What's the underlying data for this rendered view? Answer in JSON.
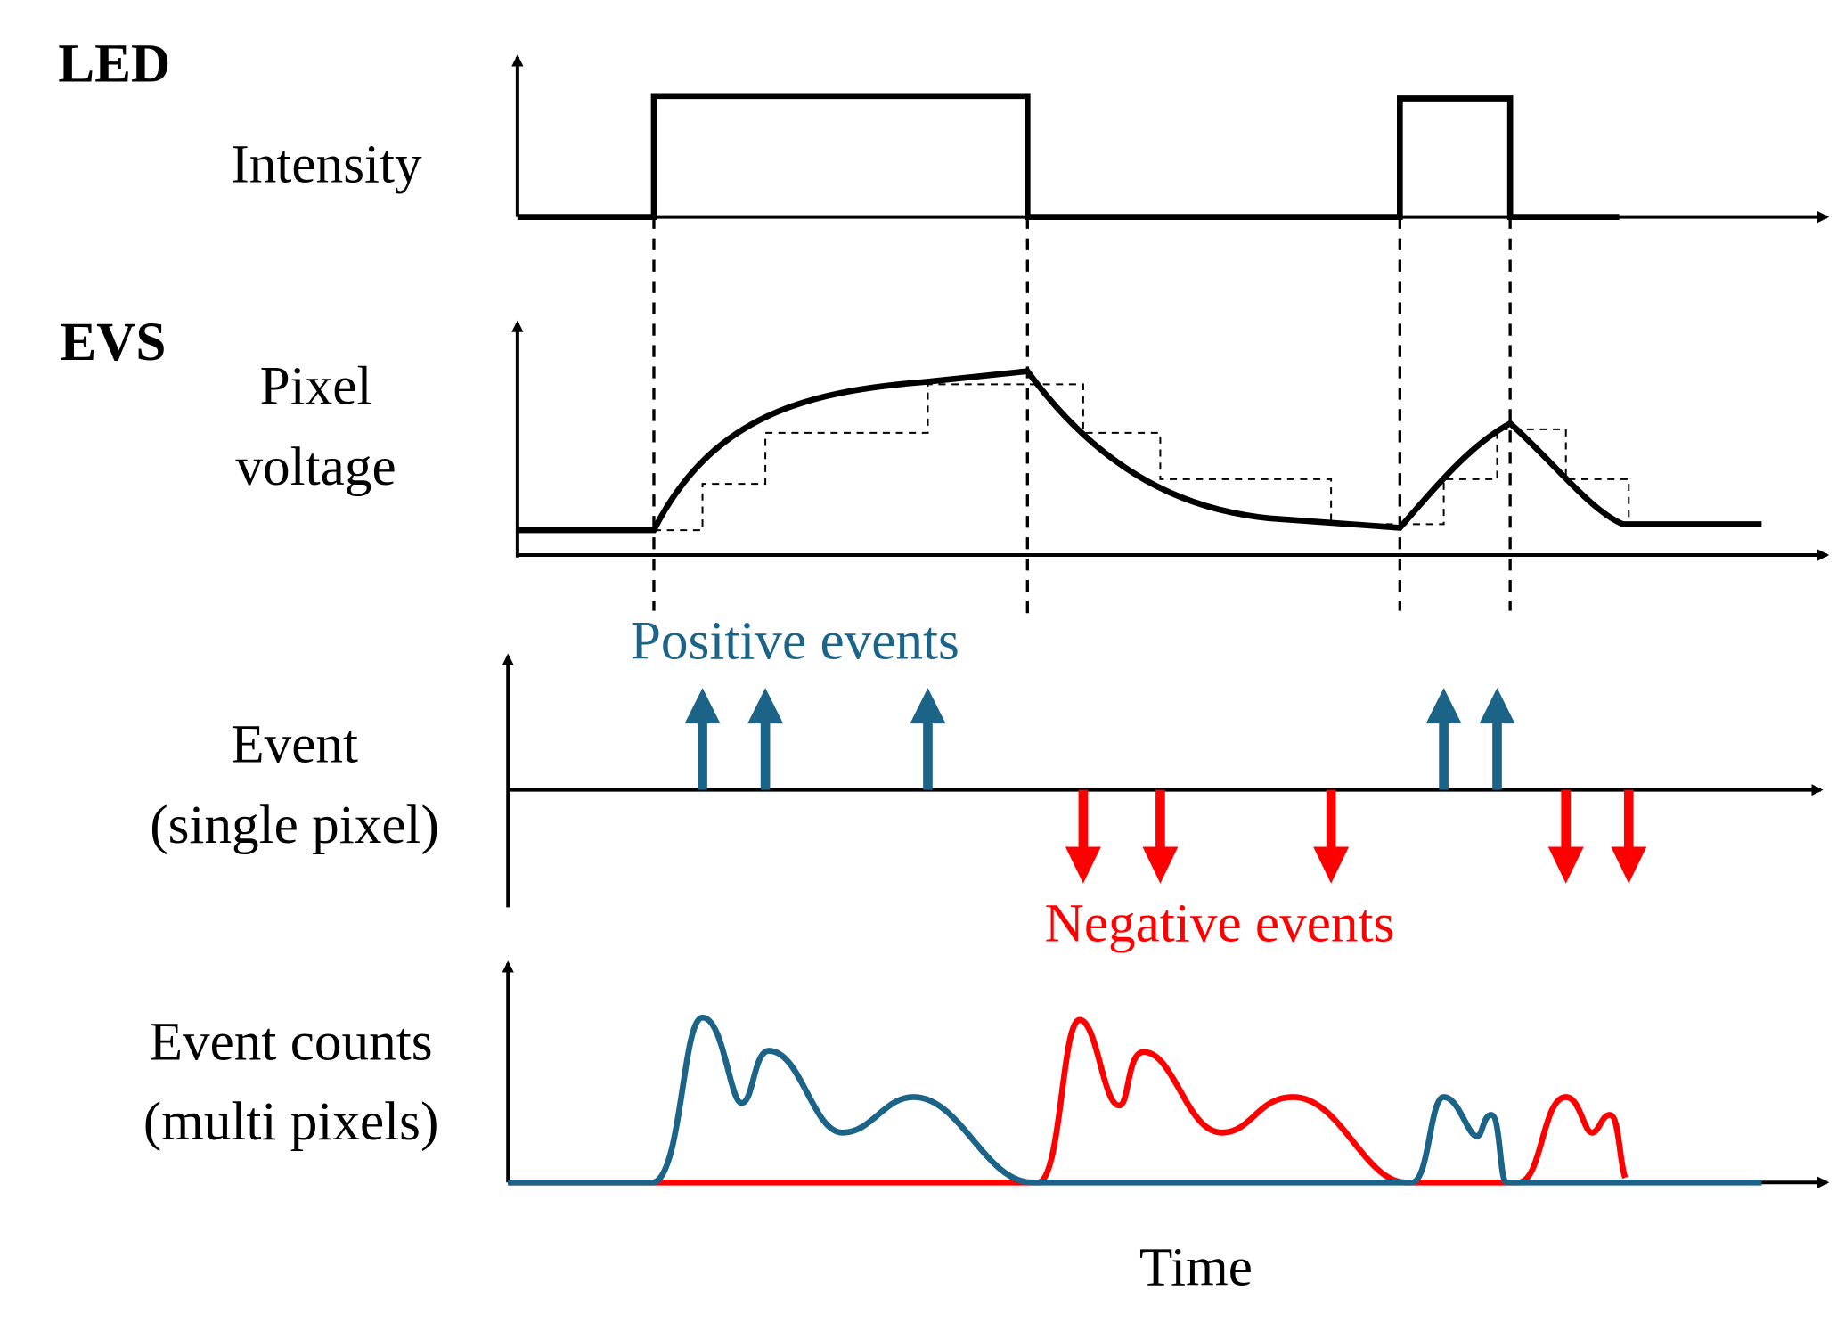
{
  "panels": [
    {
      "group": "LED",
      "label": [
        "Intensity"
      ]
    },
    {
      "group": "EVS",
      "label": [
        "Pixel",
        "voltage"
      ]
    },
    {
      "label": [
        "Event",
        "(single pixel)"
      ],
      "positive": "Positive events",
      "negative": "Negative events"
    },
    {
      "label": [
        "Event counts",
        "(multi pixels)"
      ]
    }
  ],
  "x_axis_label": "Time"
}
